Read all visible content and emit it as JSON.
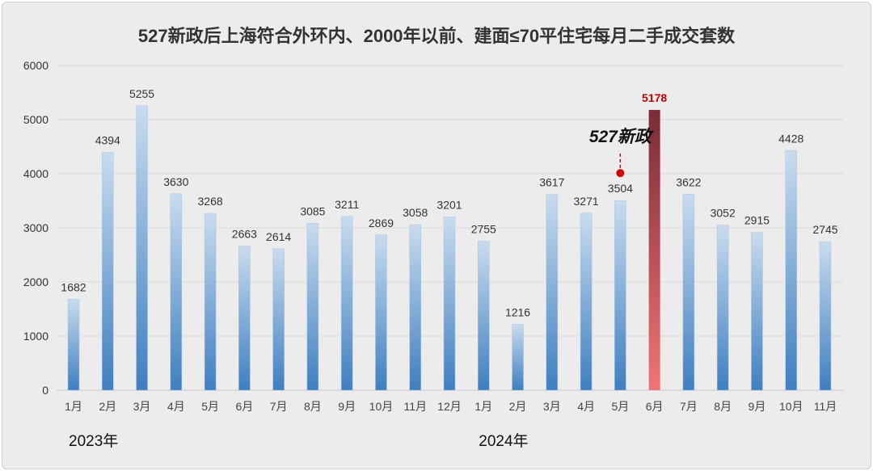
{
  "chart_data": {
    "type": "bar",
    "title": "527新政后上海符合外环内、2000年以前、建面≤70平住宅每月二手成交套数",
    "categories": [
      "1月",
      "2月",
      "3月",
      "4月",
      "5月",
      "6月",
      "7月",
      "8月",
      "9月",
      "10月",
      "11月",
      "12月",
      "1月",
      "2月",
      "3月",
      "4月",
      "5月",
      "6月",
      "7月",
      "8月",
      "9月",
      "10月",
      "11月"
    ],
    "values": [
      1682,
      4394,
      5255,
      3630,
      3268,
      2663,
      2614,
      3085,
      3211,
      2869,
      3058,
      3201,
      2755,
      1216,
      3617,
      3271,
      3504,
      5178,
      3622,
      3052,
      2915,
      4428,
      2745
    ],
    "year_labels": [
      {
        "label": "2023年",
        "start_index": 0
      },
      {
        "label": "2024年",
        "start_index": 12
      }
    ],
    "highlight_index": 17,
    "annotation": {
      "text": "527新政",
      "at_index": 16
    },
    "ylim": [
      0,
      6000
    ],
    "yticks": [
      0,
      1000,
      2000,
      3000,
      4000,
      5000,
      6000
    ],
    "grid": true,
    "colors": {
      "bar_top": "#c9dcee",
      "bar_bottom": "#3e7fc1",
      "highlight_top": "#7b2b36",
      "highlight_bottom": "#f27474",
      "highlight_label": "#c00000",
      "annotation_marker": "#d40000"
    }
  }
}
